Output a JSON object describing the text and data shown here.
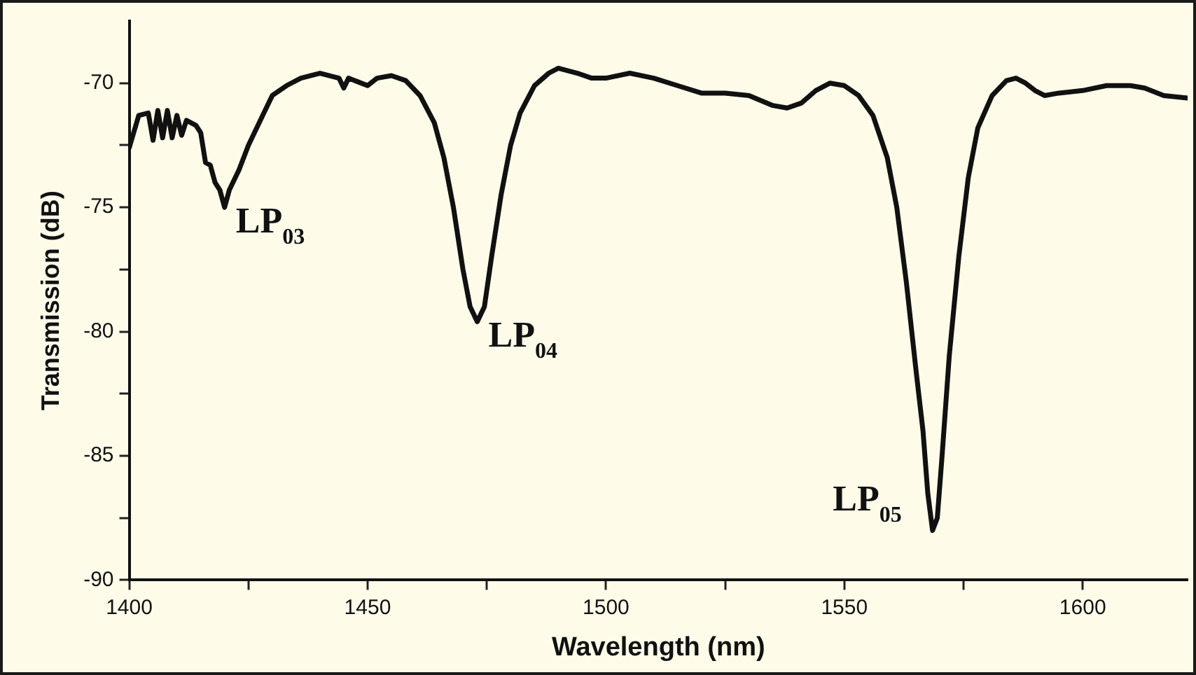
{
  "chart_data": {
    "type": "line",
    "xlabel": "Wavelength (nm)",
    "ylabel": "Transmission (dB)",
    "xlim": [
      1400,
      1622
    ],
    "ylim": [
      -90,
      -67.5
    ],
    "xticks": [
      1400,
      {
        "value": 1425,
        "label": null
      },
      1450,
      {
        "value": 1475,
        "label": null
      },
      1500,
      {
        "value": 1525,
        "label": null
      },
      1550,
      {
        "value": 1575,
        "label": null
      },
      1600
    ],
    "yticks": [
      -90,
      {
        "value": -87.5,
        "label": null
      },
      -85,
      {
        "value": -82.5,
        "label": null
      },
      -80,
      {
        "value": -77.5,
        "label": null
      },
      -75,
      {
        "value": -72.5,
        "label": null
      },
      -70
    ],
    "grid": false,
    "legend": false,
    "marker": "none",
    "line_style": "solid",
    "series": [
      {
        "color": "#111111",
        "x": [
          1400,
          1402,
          1404,
          1405,
          1406,
          1407,
          1408,
          1409,
          1410,
          1411,
          1412,
          1414,
          1415,
          1416,
          1417,
          1418,
          1419,
          1420,
          1421,
          1423,
          1425,
          1428,
          1430,
          1433,
          1436,
          1440,
          1444,
          1445,
          1446,
          1450,
          1452,
          1455,
          1458,
          1461,
          1464,
          1466,
          1468,
          1470,
          1471.5,
          1473,
          1474.5,
          1476,
          1478,
          1480,
          1482,
          1485,
          1488,
          1490,
          1494,
          1497,
          1500,
          1505,
          1510,
          1515,
          1520,
          1525,
          1530,
          1535,
          1538,
          1541,
          1544,
          1547,
          1550,
          1553,
          1556,
          1559,
          1561,
          1563,
          1565,
          1566.5,
          1567.5,
          1568.5,
          1569.5,
          1570.5,
          1572,
          1574,
          1576,
          1578,
          1581,
          1584,
          1586,
          1588,
          1590,
          1592,
          1595,
          1600,
          1605,
          1610,
          1613,
          1617,
          1622
        ],
        "values": [
          -72.6,
          -71.3,
          -71.2,
          -72.3,
          -71.1,
          -72.2,
          -71.1,
          -72.2,
          -71.3,
          -72.1,
          -71.5,
          -71.7,
          -72,
          -73.2,
          -73.3,
          -74,
          -74.3,
          -75,
          -74.3,
          -73.5,
          -72.5,
          -71.3,
          -70.5,
          -70.1,
          -69.8,
          -69.6,
          -69.8,
          -70.2,
          -69.8,
          -70.1,
          -69.8,
          -69.7,
          -69.9,
          -70.5,
          -71.6,
          -73,
          -75,
          -77.5,
          -79,
          -79.6,
          -79,
          -77,
          -74.5,
          -72.5,
          -71.2,
          -70.1,
          -69.6,
          -69.4,
          -69.6,
          -69.8,
          -69.8,
          -69.6,
          -69.8,
          -70.1,
          -70.4,
          -70.4,
          -70.5,
          -70.9,
          -71,
          -70.8,
          -70.3,
          -70,
          -70.1,
          -70.5,
          -71.3,
          -73,
          -75,
          -78,
          -81.5,
          -84,
          -86.5,
          -88,
          -87.5,
          -85,
          -81,
          -77,
          -73.8,
          -71.8,
          -70.5,
          -69.9,
          -69.8,
          -70,
          -70.3,
          -70.5,
          -70.4,
          -70.3,
          -70.1,
          -70.1,
          -70.2,
          -70.5,
          -70.6
        ]
      }
    ],
    "annotations": [
      {
        "text": "LP$_{03}$",
        "x": 1420,
        "y": -75
      },
      {
        "text": "LP$_{04}$",
        "x": 1473,
        "y": -79.6
      },
      {
        "text": "LP$_{05}$",
        "x": 1568.5,
        "y": -88
      }
    ]
  }
}
